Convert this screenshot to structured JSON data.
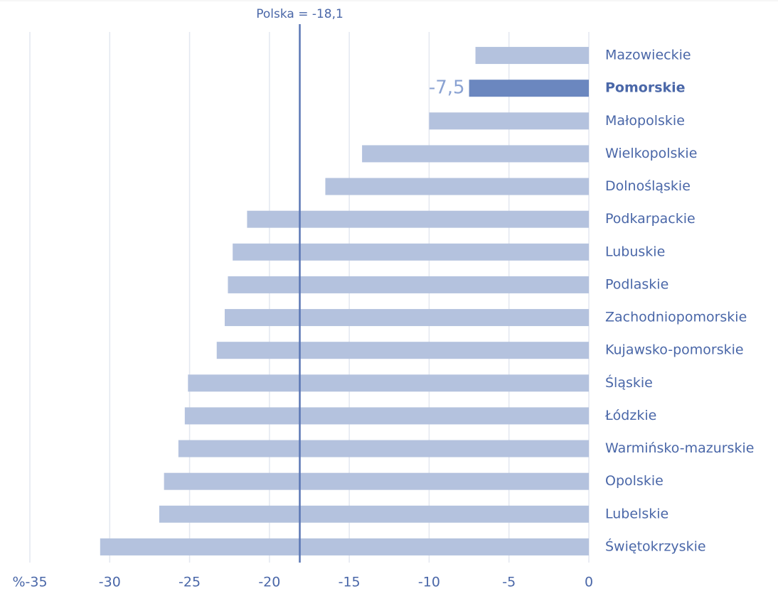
{
  "chart_data": {
    "type": "barh",
    "categories": [
      "Mazowieckie",
      "Pomorskie",
      "Małopolskie",
      "Wielkopolskie",
      "Dolnośląskie",
      "Podkarpackie",
      "Lubuskie",
      "Podlaskie",
      "Zachodniopomorskie",
      "Kujawsko-pomorskie",
      "Śląskie",
      "Łódzkie",
      "Warmińsko-mazurskie",
      "Opolskie",
      "Lubelskie",
      "Świętokrzyskie"
    ],
    "values": [
      -7.1,
      -7.5,
      -10.0,
      -14.2,
      -16.5,
      -21.4,
      -22.3,
      -22.6,
      -22.8,
      -23.3,
      -25.1,
      -25.3,
      -25.7,
      -26.6,
      -26.9,
      -30.6
    ],
    "value_labels": [
      null,
      "-7,5",
      null,
      null,
      null,
      null,
      null,
      null,
      null,
      null,
      null,
      null,
      null,
      null,
      null,
      null
    ],
    "color": "#b4c2de",
    "highlight_color": "#6b87bf",
    "highlight_index": 1,
    "xlim": [
      -35,
      0
    ],
    "xticks": [
      {
        "value": -35,
        "label": "%-35"
      },
      -30,
      -25,
      -20,
      -15,
      -10,
      -5,
      0
    ],
    "grid": true,
    "reference": {
      "value": -18.1,
      "label": "Polska = -18,1",
      "color": "#5a76b4"
    }
  }
}
